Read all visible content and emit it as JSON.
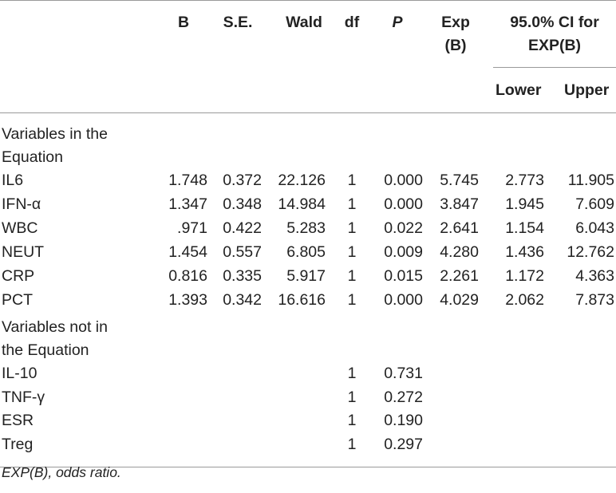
{
  "table": {
    "headers": {
      "b": "B",
      "se": "S.E.",
      "wald": "Wald",
      "df": "df",
      "p": "P",
      "exp_line1": "Exp",
      "exp_line2": "(B)",
      "ci_line1": "95.0% CI for",
      "ci_line2": "EXP(B)",
      "lower": "Lower",
      "upper": "Upper"
    },
    "section_in": {
      "line1": "Variables in the",
      "line2": "Equation"
    },
    "rows_in": [
      {
        "name": "IL6",
        "b": "1.748",
        "se": "0.372",
        "wald": "22.126",
        "df": "1",
        "p": "0.000",
        "exp": "5.745",
        "lower": "2.773",
        "upper": "11.905"
      },
      {
        "name": "IFN-α",
        "b": "1.347",
        "se": "0.348",
        "wald": "14.984",
        "df": "1",
        "p": "0.000",
        "exp": "3.847",
        "lower": "1.945",
        "upper": "7.609"
      },
      {
        "name": "WBC",
        "b": ".971",
        "se": "0.422",
        "wald": "5.283",
        "df": "1",
        "p": "0.022",
        "exp": "2.641",
        "lower": "1.154",
        "upper": "6.043"
      },
      {
        "name": "NEUT",
        "b": "1.454",
        "se": "0.557",
        "wald": "6.805",
        "df": "1",
        "p": "0.009",
        "exp": "4.280",
        "lower": "1.436",
        "upper": "12.762"
      },
      {
        "name": "CRP",
        "b": "0.816",
        "se": "0.335",
        "wald": "5.917",
        "df": "1",
        "p": "0.015",
        "exp": "2.261",
        "lower": "1.172",
        "upper": "4.363"
      },
      {
        "name": "PCT",
        "b": "1.393",
        "se": "0.342",
        "wald": "16.616",
        "df": "1",
        "p": "0.000",
        "exp": "4.029",
        "lower": "2.062",
        "upper": "7.873"
      }
    ],
    "section_not": {
      "line1": "Variables not in",
      "line2": "the Equation"
    },
    "rows_not": [
      {
        "name": "IL-10",
        "df": "1",
        "p": "0.731"
      },
      {
        "name": "TNF-γ",
        "df": "1",
        "p": "0.272"
      },
      {
        "name": "ESR",
        "df": "1",
        "p": "0.190"
      },
      {
        "name": "Treg",
        "df": "1",
        "p": "0.297"
      }
    ]
  },
  "footnote": "EXP(B), odds ratio."
}
